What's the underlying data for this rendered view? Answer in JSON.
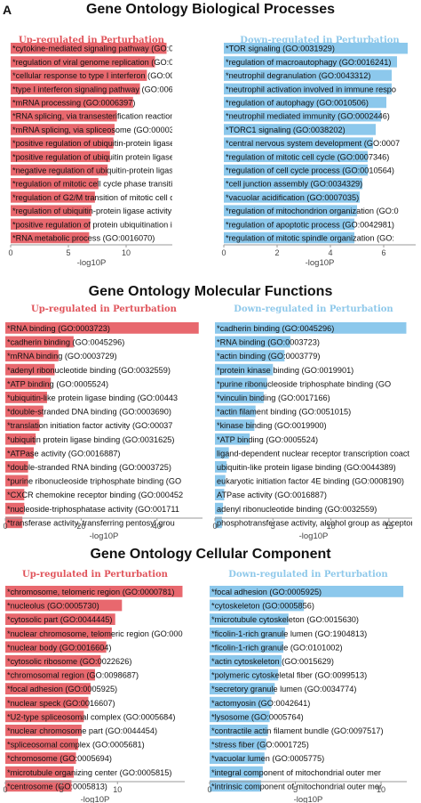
{
  "panel_letter": "A",
  "colors": {
    "up": "#e8686e",
    "down": "#8cc8ec",
    "up_title": "#e0535a",
    "down_title": "#8ec8ea",
    "axis": "#999999"
  },
  "chart_data": [
    {
      "type": "bar",
      "orientation": "horizontal",
      "title": "Gene Ontology Biological Processes",
      "subtitle": "Up-regulated in Perturbation",
      "xlabel": "-log10P",
      "xlim": [
        0,
        14
      ],
      "xticks": [
        0,
        5,
        10
      ],
      "categories": [
        "*cytokine-mediated signaling pathway (GO:0019",
        "*regulation of viral genome replication (GO:004",
        "*cellular response to type I interferon (GO:0071",
        "*type I interferon signaling pathway (GO:00603",
        "*mRNA processing (GO:0006397)",
        "*RNA splicing, via transesterification reactions w",
        "*mRNA splicing, via spliceosome (GO:0000398)",
        "*positive regulation of ubiquitin-protein ligase a",
        "*positive regulation of ubiquitin protein ligase a",
        "*negative regulation of ubiquitin-protein ligase a",
        "*regulation of mitotic cell cycle phase transition",
        "*regulation of G2/M transition of mitotic cell cyc",
        "*regulation of ubiquitin-protein ligase activity in",
        "*positive regulation of protein ubiquitination inv",
        "*RNA metabolic process (GO:0016070)"
      ],
      "values": [
        13.5,
        12.5,
        11.8,
        11.2,
        10.6,
        9.2,
        9.0,
        8.9,
        8.6,
        8.4,
        7.6,
        7.3,
        7.0,
        6.9,
        6.8
      ]
    },
    {
      "type": "bar",
      "orientation": "horizontal",
      "title": "",
      "subtitle": "Down-regulated in Perturbation",
      "xlabel": "-log10P",
      "xlim": [
        0,
        7.2
      ],
      "xticks": [
        0,
        2,
        4,
        6
      ],
      "categories": [
        "*TOR signaling (GO:0031929)",
        "*regulation of macroautophagy (GO:0016241)",
        "*neutrophil degranulation (GO:0043312)",
        "*neutrophil activation involved in immune respo",
        "*regulation of autophagy (GO:0010506)",
        "*neutrophil mediated immunity (GO:0002446)",
        "*TORC1 signaling (GO:0038202)",
        "*central nervous system development (GO:0007",
        "*regulation of mitotic cell cycle (GO:0007346)",
        "*regulation of cell cycle process (GO:0010564)",
        "*cell junction assembly (GO:0034329)",
        "*vacuolar acidification (GO:0007035)",
        "*regulation of mitochondrion organization (GO:0",
        "*regulation of apoptotic process (GO:0042981)",
        "*regulation of mitotic spindle organization (GO:"
      ],
      "values": [
        6.9,
        6.5,
        6.3,
        6.3,
        6.1,
        5.9,
        5.7,
        5.6,
        5.4,
        5.4,
        5.2,
        5.1,
        5.0,
        4.9,
        4.9
      ]
    },
    {
      "type": "bar",
      "orientation": "horizontal",
      "title": "Gene Ontology Molecular Functions",
      "subtitle": "Up-regulated in Perturbation",
      "xlabel": "-log10P",
      "xlim": [
        0,
        52
      ],
      "xticks": [
        0,
        20,
        40
      ],
      "categories": [
        "*RNA binding (GO:0003723)",
        "*cadherin binding (GO:0045296)",
        "*mRNA binding (GO:0003729)",
        "*adenyl ribonucleotide binding (GO:0032559)",
        "*ATP binding (GO:0005524)",
        "*ubiquitin-like protein ligase binding (GO:00443",
        "*double-stranded DNA binding (GO:0003690)",
        "*translation initiation factor activity (GO:00037",
        "*ubiquitin protein ligase binding (GO:0031625)",
        "*ATPase activity (GO:0016887)",
        "*double-stranded RNA binding (GO:0003725)",
        "*purine ribonucleoside triphosphate binding (GO",
        "*CXCR chemokine receptor binding (GO:000452",
        "*nucleoside-triphosphatase activity (GO:001711",
        "*transferase activity, transferring pentosyl grou"
      ],
      "values": [
        51,
        18,
        14,
        13,
        12,
        11,
        10,
        9,
        8,
        7.5,
        6,
        6,
        5,
        5,
        4.5
      ]
    },
    {
      "type": "bar",
      "orientation": "horizontal",
      "title": "",
      "subtitle": "Down-regulated in Perturbation",
      "xlabel": "-log10P",
      "xlim": [
        0,
        17
      ],
      "xticks": [
        0,
        5,
        10,
        15
      ],
      "categories": [
        "*cadherin binding (GO:0045296)",
        "*RNA binding (GO:0003723)",
        "*actin binding (GO:0003779)",
        "*protein kinase binding (GO:0019901)",
        "*purine ribonucleoside triphosphate binding (GO",
        "*vinculin binding (GO:0017166)",
        "*actin filament binding (GO:0051015)",
        "*kinase binding (GO:0019900)",
        "*ATP binding (GO:0005524)",
        "ligand-dependent nuclear receptor transcription coact",
        "ubiquitin-like protein ligase binding (GO:0044389)",
        "eukaryotic initiation factor 4E binding (GO:0008190)",
        "ATPase activity (GO:0016887)",
        "adenyl ribonucleotide binding (GO:0032559)",
        "phosphotransferase activity, alcohol group as acceptor"
      ],
      "values": [
        16.5,
        6.5,
        6.0,
        5.0,
        4.5,
        4.2,
        3.5,
        3.4,
        3.0,
        1.2,
        1.0,
        0.9,
        0.8,
        0.7,
        0.6
      ]
    },
    {
      "type": "bar",
      "orientation": "horizontal",
      "title": "Gene Ontology Cellular Component",
      "subtitle": "Up-regulated in Perturbation",
      "xlabel": "-log10P",
      "xlim": [
        0,
        16
      ],
      "xticks": [
        0,
        5,
        10
      ],
      "categories": [
        "*chromosome, telomeric region (GO:0000781)",
        "*nucleolus (GO:0005730)",
        "*cytosolic part (GO:0044445)",
        "*nuclear chromosome, telomeric region (GO:000",
        "*nuclear body (GO:0016604)",
        "*cytosolic ribosome (GO:0022626)",
        "*chromosomal region (GO:0098687)",
        "*focal adhesion (GO:0005925)",
        "*nuclear speck (GO:0016607)",
        "*U2-type spliceosomal complex (GO:0005684)",
        "*nuclear chromosome part (GO:0044454)",
        "*spliceosomal complex (GO:0005681)",
        "*chromosome (GO:0005694)",
        "*microtubule organizing center (GO:0005815)",
        "*centrosome (GO:0005813)"
      ],
      "values": [
        15.8,
        10.4,
        9.8,
        9.5,
        9.0,
        8.5,
        8.0,
        7.6,
        7.4,
        7.0,
        6.8,
        6.5,
        6.3,
        6.1,
        5.9
      ]
    },
    {
      "type": "bar",
      "orientation": "horizontal",
      "title": "",
      "subtitle": "Down-regulated in Perturbation",
      "xlabel": "-log10P",
      "xlim": [
        0,
        11.5
      ],
      "xticks": [
        0,
        5,
        10
      ],
      "categories": [
        "*focal adhesion (GO:0005925)",
        "*cytoskeleton (GO:0005856)",
        "*microtubule cytoskeleton (GO:0015630)",
        "*ficolin-1-rich granule lumen (GO:1904813)",
        "*ficolin-1-rich granule (GO:0101002)",
        "*actin cytoskeleton (GO:0015629)",
        "*polymeric cytoskeletal fiber (GO:0099513)",
        "*secretory granule lumen (GO:0034774)",
        "*actomyosin (GO:0042641)",
        "*lysosome (GO:0005764)",
        "*contractile actin filament bundle (GO:0097517)",
        "*stress fiber (GO:0001725)",
        "*vacuolar lumen (GO:0005775)",
        "*integral component of mitochondrial outer mer",
        "*intrinsic component of mitochondrial outer mer"
      ],
      "values": [
        11.3,
        5.5,
        4.6,
        4.4,
        4.3,
        4.2,
        4.0,
        3.8,
        3.6,
        3.5,
        3.4,
        3.3,
        3.2,
        3.1,
        3.0
      ]
    }
  ]
}
